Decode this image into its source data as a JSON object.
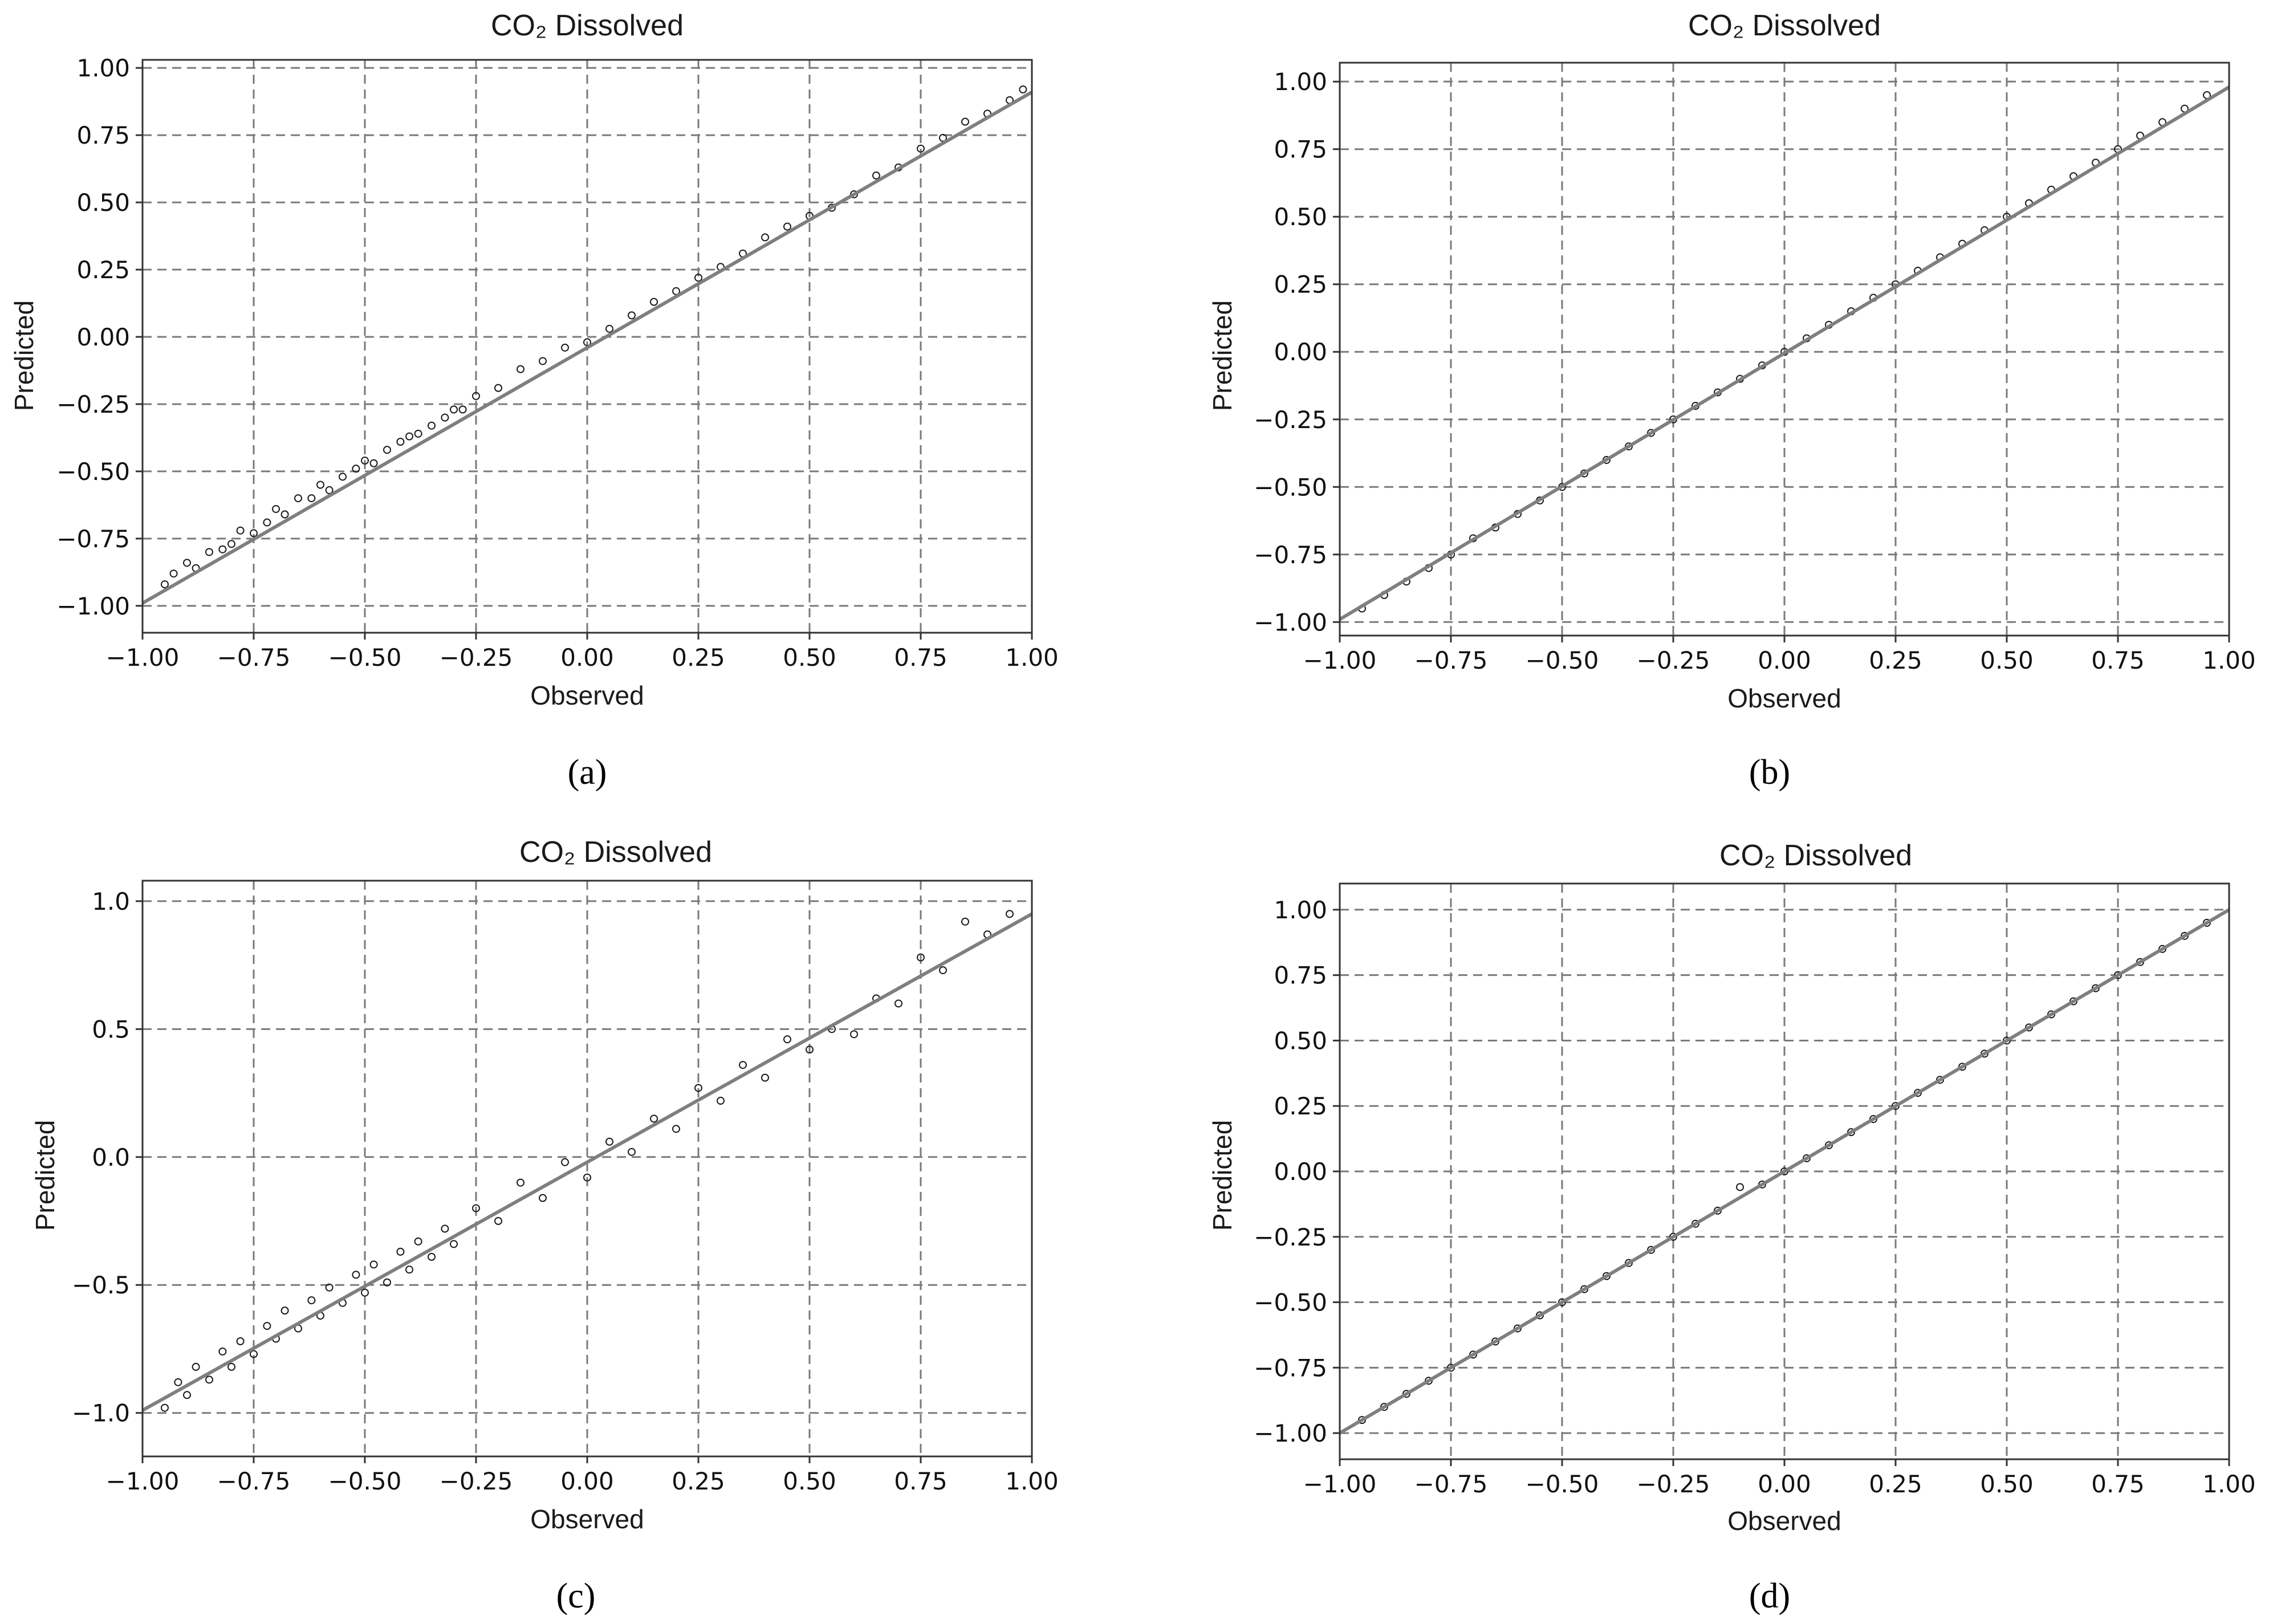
{
  "chart_data": [
    {
      "type": "scatter",
      "panel": "a",
      "caption": "(a)",
      "title": "CO₂ Dissolved",
      "xlabel": "Observed",
      "ylabel": "Predicted",
      "xlim": [
        -1.0,
        1.0
      ],
      "ylim": [
        -1.1,
        1.03
      ],
      "xticks": [
        "-1.00",
        "-0.75",
        "-0.50",
        "-0.25",
        "0.00",
        "0.25",
        "0.50",
        "0.75",
        "1.00"
      ],
      "yticks": [
        "-1.00",
        "-0.75",
        "-0.50",
        "-0.25",
        "0.00",
        "0.25",
        "0.50",
        "0.75",
        "1.00"
      ],
      "grid": true,
      "fit_line": {
        "x": [
          -1.0,
          1.0
        ],
        "y": [
          -0.99,
          0.91
        ]
      },
      "points": [
        [
          -0.95,
          -0.92
        ],
        [
          -0.93,
          -0.88
        ],
        [
          -0.9,
          -0.84
        ],
        [
          -0.88,
          -0.86
        ],
        [
          -0.85,
          -0.8
        ],
        [
          -0.82,
          -0.79
        ],
        [
          -0.8,
          -0.77
        ],
        [
          -0.78,
          -0.72
        ],
        [
          -0.75,
          -0.73
        ],
        [
          -0.72,
          -0.69
        ],
        [
          -0.7,
          -0.64
        ],
        [
          -0.68,
          -0.66
        ],
        [
          -0.65,
          -0.6
        ],
        [
          -0.62,
          -0.6
        ],
        [
          -0.6,
          -0.55
        ],
        [
          -0.58,
          -0.57
        ],
        [
          -0.55,
          -0.52
        ],
        [
          -0.52,
          -0.49
        ],
        [
          -0.5,
          -0.46
        ],
        [
          -0.48,
          -0.47
        ],
        [
          -0.45,
          -0.42
        ],
        [
          -0.42,
          -0.39
        ],
        [
          -0.4,
          -0.37
        ],
        [
          -0.38,
          -0.36
        ],
        [
          -0.35,
          -0.33
        ],
        [
          -0.32,
          -0.3
        ],
        [
          -0.3,
          -0.27
        ],
        [
          -0.28,
          -0.27
        ],
        [
          -0.25,
          -0.22
        ],
        [
          -0.2,
          -0.19
        ],
        [
          -0.15,
          -0.12
        ],
        [
          -0.1,
          -0.09
        ],
        [
          -0.05,
          -0.04
        ],
        [
          0.0,
          -0.02
        ],
        [
          0.05,
          0.03
        ],
        [
          0.1,
          0.08
        ],
        [
          0.15,
          0.13
        ],
        [
          0.2,
          0.17
        ],
        [
          0.25,
          0.22
        ],
        [
          0.3,
          0.26
        ],
        [
          0.35,
          0.31
        ],
        [
          0.4,
          0.37
        ],
        [
          0.45,
          0.41
        ],
        [
          0.5,
          0.45
        ],
        [
          0.55,
          0.48
        ],
        [
          0.6,
          0.53
        ],
        [
          0.65,
          0.6
        ],
        [
          0.7,
          0.63
        ],
        [
          0.75,
          0.7
        ],
        [
          0.8,
          0.74
        ],
        [
          0.85,
          0.8
        ],
        [
          0.9,
          0.83
        ],
        [
          0.95,
          0.88
        ],
        [
          0.98,
          0.92
        ]
      ]
    },
    {
      "type": "scatter",
      "panel": "b",
      "caption": "(b)",
      "title": "CO₂ Dissolved",
      "xlabel": "Observed",
      "ylabel": "Predicted",
      "xlim": [
        -1.0,
        1.0
      ],
      "ylim": [
        -1.05,
        1.07
      ],
      "xticks": [
        "-1.00",
        "-0.75",
        "-0.50",
        "-0.25",
        "0.00",
        "0.25",
        "0.50",
        "0.75",
        "1.00"
      ],
      "yticks": [
        "-1.00",
        "-0.75",
        "-0.50",
        "-0.25",
        "0.00",
        "0.25",
        "0.50",
        "0.75",
        "1.00"
      ],
      "grid": true,
      "fit_line": {
        "x": [
          -1.0,
          1.0
        ],
        "y": [
          -0.99,
          0.98
        ]
      },
      "points": [
        [
          -0.95,
          -0.95
        ],
        [
          -0.9,
          -0.9
        ],
        [
          -0.85,
          -0.85
        ],
        [
          -0.8,
          -0.8
        ],
        [
          -0.75,
          -0.75
        ],
        [
          -0.7,
          -0.69
        ],
        [
          -0.65,
          -0.65
        ],
        [
          -0.6,
          -0.6
        ],
        [
          -0.55,
          -0.55
        ],
        [
          -0.5,
          -0.5
        ],
        [
          -0.45,
          -0.45
        ],
        [
          -0.4,
          -0.4
        ],
        [
          -0.35,
          -0.35
        ],
        [
          -0.3,
          -0.3
        ],
        [
          -0.25,
          -0.25
        ],
        [
          -0.2,
          -0.2
        ],
        [
          -0.15,
          -0.15
        ],
        [
          -0.1,
          -0.1
        ],
        [
          -0.05,
          -0.05
        ],
        [
          0.0,
          0.0
        ],
        [
          0.05,
          0.05
        ],
        [
          0.1,
          0.1
        ],
        [
          0.15,
          0.15
        ],
        [
          0.2,
          0.2
        ],
        [
          0.25,
          0.25
        ],
        [
          0.3,
          0.3
        ],
        [
          0.35,
          0.35
        ],
        [
          0.4,
          0.4
        ],
        [
          0.45,
          0.45
        ],
        [
          0.5,
          0.5
        ],
        [
          0.55,
          0.55
        ],
        [
          0.6,
          0.6
        ],
        [
          0.65,
          0.65
        ],
        [
          0.7,
          0.7
        ],
        [
          0.75,
          0.75
        ],
        [
          0.8,
          0.8
        ],
        [
          0.85,
          0.85
        ],
        [
          0.9,
          0.9
        ],
        [
          0.95,
          0.95
        ]
      ]
    },
    {
      "type": "scatter",
      "panel": "c",
      "caption": "(c)",
      "title": "CO₂ Dissolved",
      "xlabel": "Observed",
      "ylabel": "Predicted",
      "xlim": [
        -1.0,
        1.0
      ],
      "ylim": [
        -1.17,
        1.08
      ],
      "xticks": [
        "-1.00",
        "-0.75",
        "-0.50",
        "-0.25",
        "0.00",
        "0.25",
        "0.50",
        "0.75",
        "1.00"
      ],
      "yticks": [
        "-1.0",
        "-0.5",
        "0.0",
        "0.5",
        "1.0"
      ],
      "grid": true,
      "fit_line": {
        "x": [
          -1.0,
          1.0
        ],
        "y": [
          -0.99,
          0.95
        ]
      },
      "points": [
        [
          -0.95,
          -0.98
        ],
        [
          -0.92,
          -0.88
        ],
        [
          -0.9,
          -0.93
        ],
        [
          -0.88,
          -0.82
        ],
        [
          -0.85,
          -0.87
        ],
        [
          -0.82,
          -0.76
        ],
        [
          -0.8,
          -0.82
        ],
        [
          -0.78,
          -0.72
        ],
        [
          -0.75,
          -0.77
        ],
        [
          -0.72,
          -0.66
        ],
        [
          -0.7,
          -0.71
        ],
        [
          -0.68,
          -0.6
        ],
        [
          -0.65,
          -0.67
        ],
        [
          -0.62,
          -0.56
        ],
        [
          -0.6,
          -0.62
        ],
        [
          -0.58,
          -0.51
        ],
        [
          -0.55,
          -0.57
        ],
        [
          -0.52,
          -0.46
        ],
        [
          -0.5,
          -0.53
        ],
        [
          -0.48,
          -0.42
        ],
        [
          -0.45,
          -0.49
        ],
        [
          -0.42,
          -0.37
        ],
        [
          -0.4,
          -0.44
        ],
        [
          -0.38,
          -0.33
        ],
        [
          -0.35,
          -0.39
        ],
        [
          -0.32,
          -0.28
        ],
        [
          -0.3,
          -0.34
        ],
        [
          -0.25,
          -0.2
        ],
        [
          -0.2,
          -0.25
        ],
        [
          -0.15,
          -0.1
        ],
        [
          -0.1,
          -0.16
        ],
        [
          -0.05,
          -0.02
        ],
        [
          0.0,
          -0.08
        ],
        [
          0.05,
          0.06
        ],
        [
          0.1,
          0.02
        ],
        [
          0.15,
          0.15
        ],
        [
          0.2,
          0.11
        ],
        [
          0.25,
          0.27
        ],
        [
          0.3,
          0.22
        ],
        [
          0.35,
          0.36
        ],
        [
          0.4,
          0.31
        ],
        [
          0.45,
          0.46
        ],
        [
          0.5,
          0.42
        ],
        [
          0.55,
          0.5
        ],
        [
          0.6,
          0.48
        ],
        [
          0.65,
          0.62
        ],
        [
          0.7,
          0.6
        ],
        [
          0.75,
          0.78
        ],
        [
          0.8,
          0.73
        ],
        [
          0.85,
          0.92
        ],
        [
          0.9,
          0.87
        ],
        [
          0.95,
          0.95
        ]
      ]
    },
    {
      "type": "scatter",
      "panel": "d",
      "caption": "(d)",
      "title": "CO₂ Dissolved",
      "xlabel": "Observed",
      "ylabel": "Predicted",
      "xlim": [
        -1.0,
        1.0
      ],
      "ylim": [
        -1.1,
        1.1
      ],
      "xticks": [
        "-1.00",
        "-0.75",
        "-0.50",
        "-0.25",
        "0.00",
        "0.25",
        "0.50",
        "0.75",
        "1.00"
      ],
      "yticks": [
        "-1.00",
        "-0.75",
        "-0.50",
        "-0.25",
        "0.00",
        "0.25",
        "0.50",
        "0.75",
        "1.00"
      ],
      "grid": true,
      "fit_line": {
        "x": [
          -1.0,
          1.0
        ],
        "y": [
          -1.0,
          1.0
        ]
      },
      "points": [
        [
          -0.95,
          -0.95
        ],
        [
          -0.9,
          -0.9
        ],
        [
          -0.85,
          -0.85
        ],
        [
          -0.8,
          -0.8
        ],
        [
          -0.75,
          -0.75
        ],
        [
          -0.7,
          -0.7
        ],
        [
          -0.65,
          -0.65
        ],
        [
          -0.6,
          -0.6
        ],
        [
          -0.55,
          -0.55
        ],
        [
          -0.5,
          -0.5
        ],
        [
          -0.45,
          -0.45
        ],
        [
          -0.4,
          -0.4
        ],
        [
          -0.35,
          -0.35
        ],
        [
          -0.3,
          -0.3
        ],
        [
          -0.25,
          -0.25
        ],
        [
          -0.2,
          -0.2
        ],
        [
          -0.15,
          -0.15
        ],
        [
          -0.1,
          -0.06
        ],
        [
          -0.05,
          -0.05
        ],
        [
          0.0,
          0.0
        ],
        [
          0.05,
          0.05
        ],
        [
          0.1,
          0.1
        ],
        [
          0.15,
          0.15
        ],
        [
          0.2,
          0.2
        ],
        [
          0.25,
          0.25
        ],
        [
          0.3,
          0.3
        ],
        [
          0.35,
          0.35
        ],
        [
          0.4,
          0.4
        ],
        [
          0.45,
          0.45
        ],
        [
          0.5,
          0.5
        ],
        [
          0.55,
          0.55
        ],
        [
          0.6,
          0.6
        ],
        [
          0.65,
          0.65
        ],
        [
          0.7,
          0.7
        ],
        [
          0.75,
          0.75
        ],
        [
          0.8,
          0.8
        ],
        [
          0.85,
          0.85
        ],
        [
          0.9,
          0.9
        ],
        [
          0.95,
          0.95
        ]
      ]
    }
  ],
  "colors": {
    "grid": "#7a7a7a",
    "axes": "#333333",
    "fit_line": "#7f7f7f",
    "marker_edge": "#1a1a1a"
  }
}
